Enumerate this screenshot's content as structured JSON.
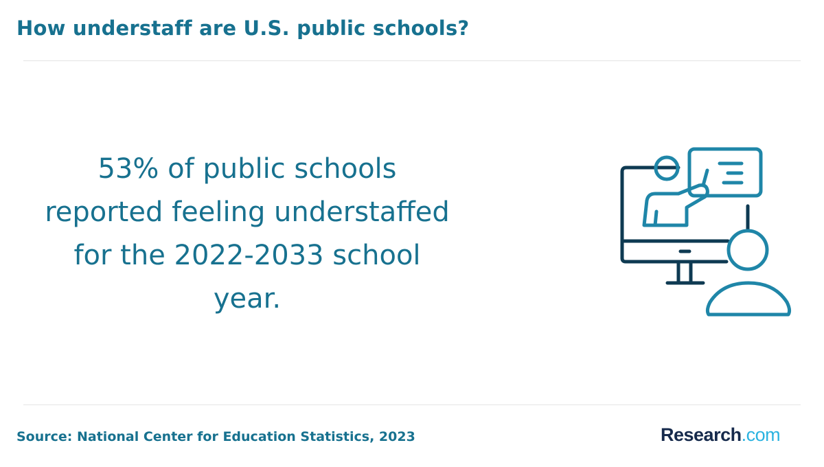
{
  "header": {
    "title": "How understaff are U.S. public schools?"
  },
  "main": {
    "statement": "53% of public schools reported feeling understaffed for the 2022-2033 school year.",
    "illustration_icon": "teacher-presenting-on-monitor-icon"
  },
  "footer": {
    "source": "Source: National Center for Education Statistics, 2023",
    "logo_brand": "Research",
    "logo_tld": ".com"
  },
  "colors": {
    "title": "#17718f",
    "icon_dark": "#0e3a52",
    "icon_teal": "#1f86a8",
    "logo_navy": "#162a4c",
    "logo_cyan": "#2bb3e0"
  }
}
